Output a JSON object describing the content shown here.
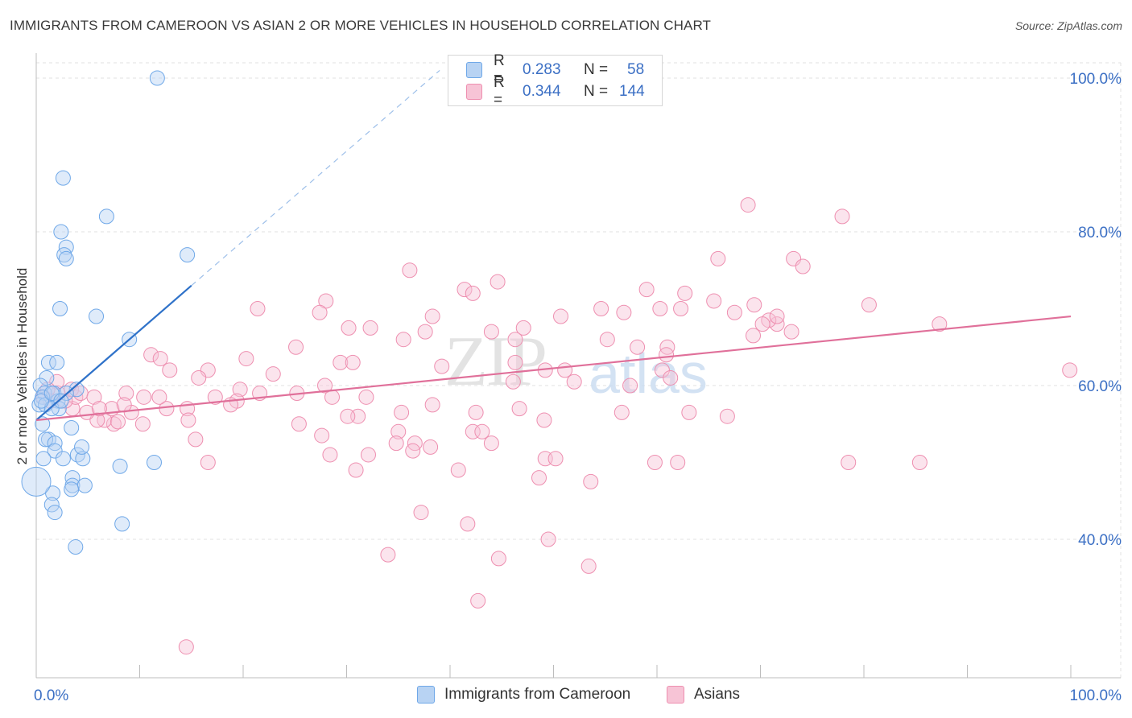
{
  "header": {
    "title": "IMMIGRANTS FROM CAMEROON VS ASIAN 2 OR MORE VEHICLES IN HOUSEHOLD CORRELATION CHART",
    "source": "Source: ZipAtlas.com"
  },
  "legend": {
    "rows": [
      {
        "r_label": "R =",
        "r_value": "0.283",
        "n_label": "N =",
        "n_value": "58"
      },
      {
        "r_label": "R =",
        "r_value": "0.344",
        "n_label": "N =",
        "n_value": "144"
      }
    ]
  },
  "bottom_legend": {
    "items": [
      {
        "label": "Immigrants from Cameroon"
      },
      {
        "label": "Asians"
      }
    ]
  },
  "watermark": {
    "zip": "ZIP",
    "atlas": "atlas"
  },
  "colors": {
    "blue": "#6fa8e8",
    "blue_fill": "#b8d3f3",
    "blue_line": "#2f72c9",
    "pink": "#ee8fb0",
    "pink_fill": "#f7c4d6",
    "pink_line": "#e0709a",
    "axis_text": "#3b6fc4",
    "grid": "#e2e2e2"
  },
  "chart_data": {
    "type": "scatter",
    "title": "IMMIGRANTS FROM CAMEROON VS ASIAN 2 OR MORE VEHICLES IN HOUSEHOLD CORRELATION CHART",
    "xlabel": "",
    "ylabel": "2 or more Vehicles in Household",
    "xlim": [
      0,
      100
    ],
    "ylim": [
      20,
      101
    ],
    "x_tick_labels": [
      "0.0%",
      "100.0%"
    ],
    "y_tick_labels": [
      "40.0%",
      "60.0%",
      "80.0%",
      "100.0%"
    ],
    "y_ticks": [
      40,
      60,
      80,
      100
    ],
    "grid": true,
    "series": [
      {
        "name": "Immigrants from Cameroon",
        "trend": {
          "x0": 0,
          "y0": 55.5,
          "x1": 15,
          "y1": 73.0,
          "dash_to_x": 39,
          "dash_to_y": 101
        },
        "points": [
          [
            11.7,
            100
          ],
          [
            2.6,
            87
          ],
          [
            6.8,
            82
          ],
          [
            2.4,
            80
          ],
          [
            2.9,
            78
          ],
          [
            2.7,
            77
          ],
          [
            14.6,
            77
          ],
          [
            2.9,
            76.5
          ],
          [
            2.3,
            70
          ],
          [
            5.8,
            69
          ],
          [
            9,
            66
          ],
          [
            1.2,
            63
          ],
          [
            2,
            63
          ],
          [
            1,
            61
          ],
          [
            0.4,
            60
          ],
          [
            0.8,
            59
          ],
          [
            1.7,
            59
          ],
          [
            3.9,
            59.5
          ],
          [
            0.6,
            58.5
          ],
          [
            2.1,
            58
          ],
          [
            0.3,
            57.5
          ],
          [
            0.9,
            57.5
          ],
          [
            2.2,
            57
          ],
          [
            1.5,
            57
          ],
          [
            2.9,
            59
          ],
          [
            0.6,
            55
          ],
          [
            3.4,
            54.5
          ],
          [
            1.2,
            53
          ],
          [
            0.9,
            53
          ],
          [
            1.8,
            52.5
          ],
          [
            1.8,
            51.5
          ],
          [
            4,
            51
          ],
          [
            0.7,
            50.5
          ],
          [
            2.6,
            50.5
          ],
          [
            4.5,
            50.5
          ],
          [
            4.4,
            52
          ],
          [
            8.1,
            49.5
          ],
          [
            11.4,
            50
          ],
          [
            3.5,
            48
          ],
          [
            3.5,
            47
          ],
          [
            4.7,
            47
          ],
          [
            3.4,
            46.5
          ],
          [
            1.6,
            46
          ],
          [
            1.5,
            44.5
          ],
          [
            1.8,
            43.5
          ],
          [
            8.3,
            42
          ],
          [
            3.8,
            39
          ],
          [
            0,
            47.5
          ],
          [
            0.5,
            58
          ],
          [
            1.5,
            59
          ],
          [
            2.4,
            58
          ]
        ]
      },
      {
        "name": "Asians",
        "trend": {
          "x0": 0,
          "y0": 55.5,
          "x1": 100,
          "y1": 69.0
        },
        "points": [
          [
            68.8,
            83.5
          ],
          [
            77.9,
            82
          ],
          [
            73.2,
            76.5
          ],
          [
            65.9,
            76.5
          ],
          [
            74.1,
            75.5
          ],
          [
            36.1,
            75
          ],
          [
            59,
            72.5
          ],
          [
            65.5,
            71
          ],
          [
            28,
            71
          ],
          [
            41.4,
            72.5
          ],
          [
            42.2,
            72
          ],
          [
            44.6,
            73.5
          ],
          [
            54.6,
            70
          ],
          [
            69.4,
            70.5
          ],
          [
            62.7,
            72
          ],
          [
            60.3,
            70
          ],
          [
            67.5,
            69.5
          ],
          [
            62.3,
            70
          ],
          [
            71.6,
            68
          ],
          [
            80.5,
            70.5
          ],
          [
            70.8,
            68.5
          ],
          [
            71.6,
            69
          ],
          [
            87.3,
            68
          ],
          [
            50.7,
            69
          ],
          [
            56.8,
            69.5
          ],
          [
            21.4,
            70
          ],
          [
            27.4,
            69.5
          ],
          [
            38.3,
            69
          ],
          [
            30.2,
            67.5
          ],
          [
            32.3,
            67.5
          ],
          [
            37.6,
            67
          ],
          [
            44,
            67
          ],
          [
            47.1,
            67.5
          ],
          [
            58.1,
            65
          ],
          [
            55.2,
            66
          ],
          [
            35.5,
            66
          ],
          [
            46.3,
            66
          ],
          [
            25.1,
            65
          ],
          [
            61,
            65
          ],
          [
            60.9,
            64
          ],
          [
            69.3,
            66.5
          ],
          [
            73,
            67
          ],
          [
            70.2,
            68
          ],
          [
            11.1,
            64
          ],
          [
            12,
            63.5
          ],
          [
            20.3,
            63.5
          ],
          [
            29.4,
            63
          ],
          [
            30.6,
            63
          ],
          [
            46.3,
            63
          ],
          [
            16.6,
            62
          ],
          [
            12.9,
            62
          ],
          [
            22.9,
            61.5
          ],
          [
            15.7,
            61
          ],
          [
            19.7,
            59.5
          ],
          [
            27.9,
            60
          ],
          [
            46.1,
            60.5
          ],
          [
            52,
            60.5
          ],
          [
            57.4,
            60
          ],
          [
            60.5,
            62
          ],
          [
            61.3,
            61
          ],
          [
            21.6,
            59
          ],
          [
            25.2,
            59
          ],
          [
            28.6,
            58.5
          ],
          [
            38.3,
            57.5
          ],
          [
            31.9,
            58.5
          ],
          [
            19.4,
            58
          ],
          [
            17.3,
            58.5
          ],
          [
            8.7,
            59
          ],
          [
            10.4,
            58.5
          ],
          [
            9.2,
            56.5
          ],
          [
            12.6,
            57
          ],
          [
            14.6,
            57
          ],
          [
            18.8,
            57.5
          ],
          [
            42.5,
            56.5
          ],
          [
            46.7,
            57
          ],
          [
            35.3,
            56.5
          ],
          [
            31.1,
            56
          ],
          [
            30.1,
            56
          ],
          [
            25.4,
            55
          ],
          [
            7.5,
            55
          ],
          [
            6.6,
            55.5
          ],
          [
            7.9,
            55.3
          ],
          [
            14.7,
            55.5
          ],
          [
            49.1,
            55.5
          ],
          [
            56.6,
            56.5
          ],
          [
            63.1,
            56.5
          ],
          [
            66.8,
            56
          ],
          [
            42.2,
            54
          ],
          [
            43.1,
            54
          ],
          [
            35,
            54
          ],
          [
            27.6,
            53.5
          ],
          [
            15.4,
            53
          ],
          [
            10.3,
            55
          ],
          [
            5.9,
            55.5
          ],
          [
            3.5,
            57
          ],
          [
            4.9,
            56.5
          ],
          [
            3.8,
            58.5
          ],
          [
            11.9,
            58.5
          ],
          [
            7.3,
            57
          ],
          [
            8.5,
            57.5
          ],
          [
            2.1,
            59
          ],
          [
            2,
            60.5
          ],
          [
            1.1,
            59.5
          ],
          [
            0.7,
            58.5
          ],
          [
            2.8,
            58
          ],
          [
            1.4,
            58
          ],
          [
            3.4,
            59.5
          ],
          [
            4.3,
            59
          ],
          [
            5.6,
            58.5
          ],
          [
            6.1,
            57
          ],
          [
            34.8,
            52.5
          ],
          [
            36.6,
            52.5
          ],
          [
            36.4,
            51.5
          ],
          [
            28.4,
            51
          ],
          [
            16.6,
            50
          ],
          [
            32.1,
            51
          ],
          [
            38.1,
            52
          ],
          [
            44,
            52.5
          ],
          [
            49.2,
            50.5
          ],
          [
            59.8,
            50
          ],
          [
            50.2,
            50.5
          ],
          [
            62,
            50
          ],
          [
            78.5,
            50
          ],
          [
            85.4,
            50
          ],
          [
            30.9,
            49
          ],
          [
            40.8,
            49
          ],
          [
            48.6,
            48
          ],
          [
            53.6,
            47.5
          ],
          [
            37.2,
            43.5
          ],
          [
            41.7,
            42
          ],
          [
            49.5,
            40
          ],
          [
            44.7,
            37.5
          ],
          [
            34,
            38
          ],
          [
            53.4,
            36.5
          ],
          [
            42.7,
            32
          ],
          [
            14.5,
            26
          ],
          [
            99.9,
            62
          ],
          [
            39.2,
            62.5
          ],
          [
            49.2,
            62
          ],
          [
            51.1,
            62
          ]
        ]
      }
    ]
  }
}
